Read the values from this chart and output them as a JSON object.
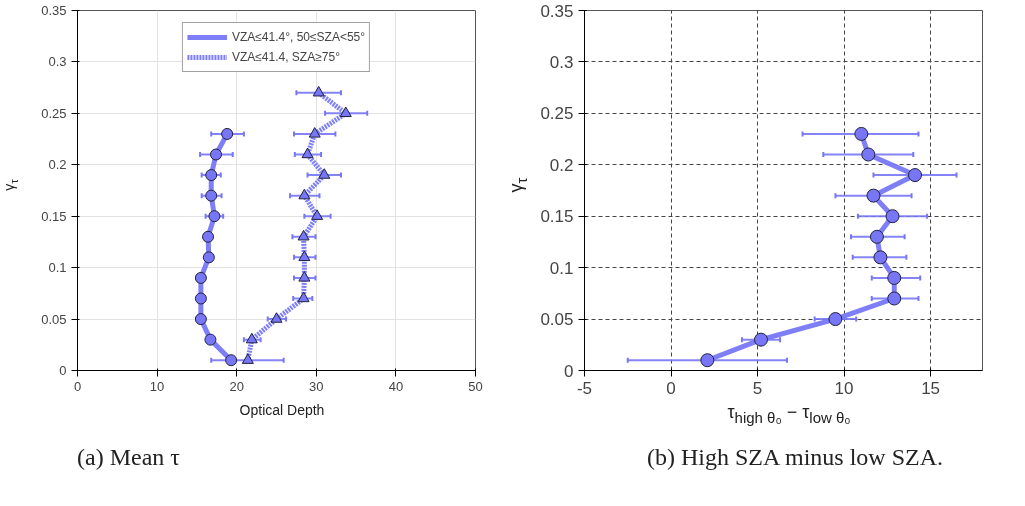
{
  "chart_data": [
    {
      "type": "line",
      "xlabel": "Optical Depth",
      "ylabel": "γ$_{τ}$",
      "annotations": [
        "(a) Mean τ"
      ],
      "xlim": [
        0,
        50
      ],
      "xticks": [
        0,
        10,
        20,
        30,
        40,
        50
      ],
      "ylim": [
        0,
        0.35
      ],
      "yticks": [
        0,
        0.05,
        0.1,
        0.15,
        0.2,
        0.25,
        0.3,
        0.35
      ],
      "grid": true,
      "legend": "top",
      "series": [
        {
          "name": "VZA≤41.4°, 50≤SZA<55°",
          "color": "#7777f5",
          "marker": "circle",
          "line_style": "solid",
          "x": [
            18.8,
            17.4,
            16.8,
            16.8,
            17.2,
            16.4,
            16.5,
            15.5,
            15.5,
            15.5,
            16.7,
            19.3
          ],
          "values": [
            0.23,
            0.21,
            0.19,
            0.17,
            0.15,
            0.13,
            0.11,
            0.09,
            0.07,
            0.05,
            0.03,
            0.01
          ],
          "xerrors": [
            [
              16.8,
              20.9
            ],
            [
              15.4,
              19.5
            ],
            [
              15.6,
              18.0
            ],
            [
              15.6,
              18.1
            ],
            [
              16.1,
              18.3
            ],
            null,
            null,
            null,
            null,
            null,
            null,
            [
              16.8,
              25.9
            ]
          ]
        },
        {
          "name": "VZA≤41.4, SZA≥75°",
          "color": "#7777f5",
          "marker": "triangle",
          "line_style": "dotted",
          "x": [
            30.3,
            33.7,
            29.8,
            28.9,
            31.0,
            28.5,
            30.1,
            28.4,
            28.5,
            28.5,
            28.4,
            25.0,
            21.9,
            21.4
          ],
          "values": [
            0.27,
            0.25,
            0.23,
            0.21,
            0.19,
            0.17,
            0.15,
            0.13,
            0.11,
            0.09,
            0.07,
            0.05,
            0.03,
            0.01
          ],
          "xerrors": [
            [
              27.5,
              33.1
            ],
            [
              31.1,
              36.4
            ],
            [
              27.2,
              32.4
            ],
            [
              27.3,
              30.6
            ],
            [
              28.9,
              33.1
            ],
            [
              26.7,
              30.4
            ],
            [
              28.5,
              31.8
            ],
            [
              27.0,
              29.9
            ],
            [
              27.2,
              29.9
            ],
            [
              27.2,
              29.9
            ],
            [
              27.1,
              29.5
            ],
            [
              23.9,
              26.2
            ],
            [
              20.9,
              23.0
            ],
            null
          ]
        }
      ]
    },
    {
      "type": "line",
      "xlabel": "τ$_{high θ₀}$ − τ$_{low θ₀}$",
      "ylabel": "γ$_{τ}$",
      "annotations": [
        "(b) High SZA minus low SZA."
      ],
      "xlim": [
        -5,
        18
      ],
      "xticks": [
        -5,
        0,
        5,
        10,
        15
      ],
      "ylim": [
        0,
        0.35
      ],
      "yticks": [
        0,
        0.05,
        0.1,
        0.15,
        0.2,
        0.25,
        0.3,
        0.35
      ],
      "grid": true,
      "series": [
        {
          "color": "#7777f5",
          "marker": "circle",
          "line_style": "solid",
          "x": [
            11.0,
            11.4,
            14.1,
            11.7,
            12.8,
            11.9,
            12.1,
            12.9,
            12.9,
            9.5,
            5.2,
            2.1
          ],
          "values": [
            0.23,
            0.21,
            0.19,
            0.17,
            0.15,
            0.13,
            0.11,
            0.09,
            0.07,
            0.05,
            0.03,
            0.01
          ],
          "xerrors": [
            [
              7.6,
              14.3
            ],
            [
              8.8,
              14.0
            ],
            [
              11.7,
              16.5
            ],
            [
              9.5,
              13.9
            ],
            [
              10.8,
              14.8
            ],
            [
              10.4,
              13.5
            ],
            [
              10.5,
              13.6
            ],
            [
              11.6,
              14.4
            ],
            [
              11.6,
              14.3
            ],
            [
              8.3,
              10.7
            ],
            [
              4.1,
              6.3
            ],
            [
              -2.5,
              6.7
            ]
          ]
        }
      ]
    }
  ]
}
